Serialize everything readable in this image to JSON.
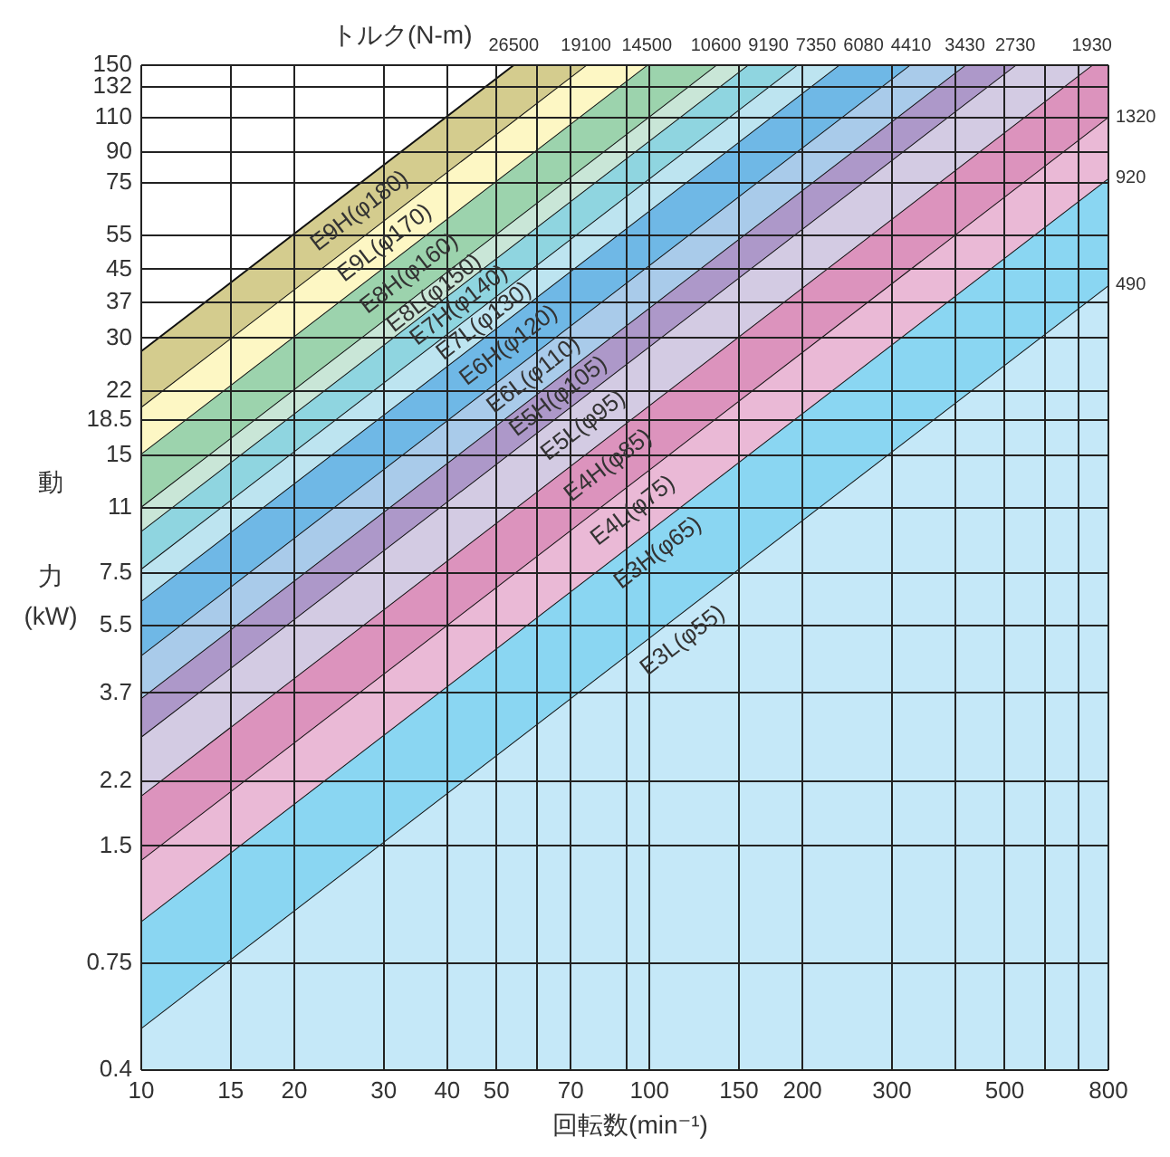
{
  "chart_data": {
    "type": "area",
    "xlabel": "回転数(min⁻¹)",
    "ylabel": "動力(kW)",
    "log": "xy",
    "grid": true,
    "xlim": [
      10,
      800
    ],
    "ylim": [
      0.4,
      150
    ],
    "xticks": [
      10,
      15,
      20,
      30,
      40,
      50,
      {
        "value": 60,
        "label": null
      },
      70,
      {
        "value": 90,
        "label": null
      },
      100,
      150,
      200,
      300,
      {
        "value": 400,
        "label": null
      },
      500,
      {
        "value": 600,
        "label": null
      },
      {
        "value": 700,
        "label": null
      },
      800
    ],
    "yticks": [
      0.4,
      0.75,
      1.5,
      2.2,
      3.7,
      5.5,
      7.5,
      11,
      15,
      18.5,
      22,
      30,
      37,
      45,
      55,
      75,
      90,
      110,
      132,
      150
    ],
    "series": [
      {
        "name": "E9H(φ180)",
        "color": "#d4cc8e",
        "x": [
          10,
          54.06,
          800
        ],
        "values": [
          27.75,
          150,
          150
        ]
      },
      {
        "name": "E9L(φ170)",
        "color": "#fdf7c4",
        "x": [
          10,
          75.0,
          800
        ],
        "values": [
          20.0,
          150,
          150
        ]
      },
      {
        "name": "E8H(φ160)",
        "color": "#9cd3ad",
        "x": [
          10,
          98.8,
          800
        ],
        "values": [
          15.18,
          150,
          150
        ]
      },
      {
        "name": "E8L(φ150)",
        "color": "#c9e6d7",
        "x": [
          10,
          135.1,
          800
        ],
        "values": [
          11.1,
          150,
          150
        ]
      },
      {
        "name": "E7H(φ140)",
        "color": "#8fd5e0",
        "x": [
          10,
          155.9,
          800
        ],
        "values": [
          9.62,
          150,
          150
        ]
      },
      {
        "name": "E7L(φ130)",
        "color": "#bde4f0",
        "x": [
          10,
          194.9,
          800
        ],
        "values": [
          7.7,
          150,
          150
        ]
      },
      {
        "name": "E6H(φ120)",
        "color": "#6fb8e6",
        "x": [
          10,
          235.6,
          800
        ],
        "values": [
          6.37,
          150,
          150
        ]
      },
      {
        "name": "E6L(φ110)",
        "color": "#a9cbea",
        "x": [
          10,
          324.8,
          800
        ],
        "values": [
          4.62,
          150,
          150
        ]
      },
      {
        "name": "E5H(φ105)",
        "color": "#ad98c9",
        "x": [
          10,
          417.6,
          800
        ],
        "values": [
          3.59,
          150,
          150
        ]
      },
      {
        "name": "E5L(φ95)",
        "color": "#d3cbe3",
        "x": [
          10,
          524.7,
          800
        ],
        "values": [
          2.86,
          150,
          150
        ]
      },
      {
        "name": "E4H(φ85)",
        "color": "#dc93bd",
        "x": [
          10,
          742.2,
          800
        ],
        "values": [
          2.02,
          150,
          150
        ]
      },
      {
        "name": "E4L(φ75)",
        "color": "#eab9d6",
        "x": [
          10,
          800
        ],
        "values": [
          1.382,
          110.6
        ]
      },
      {
        "name": "E3H(φ65)",
        "color": "#8ad6f2",
        "x": [
          10,
          800
        ],
        "values": [
          0.963,
          77.1
        ]
      },
      {
        "name": "E3L(φ55)",
        "color": "#c5e8f8",
        "x": [
          10,
          800
        ],
        "values": [
          0.513,
          41.0
        ]
      }
    ],
    "annotations": [
      "トルク(N-m)",
      {
        "text": "26500",
        "x": 54.06,
        "y": 150
      },
      {
        "text": "19100",
        "x": 75.0,
        "y": 150
      },
      {
        "text": "14500",
        "x": 98.8,
        "y": 150
      },
      {
        "text": "10600",
        "x": 135.1,
        "y": 150
      },
      {
        "text": "9190",
        "x": 155.9,
        "y": 150
      },
      {
        "text": "7350",
        "x": 194.9,
        "y": 150
      },
      {
        "text": "6080",
        "x": 235.6,
        "y": 150
      },
      {
        "text": "4410",
        "x": 324.8,
        "y": 150
      },
      {
        "text": "3430",
        "x": 417.6,
        "y": 150
      },
      {
        "text": "2730",
        "x": 524.7,
        "y": 150
      },
      {
        "text": "1930",
        "x": 742.2,
        "y": 150
      },
      {
        "text": "1320",
        "x": 800,
        "y": 110.6
      },
      {
        "text": "920",
        "x": 800,
        "y": 77.1
      },
      {
        "text": "490",
        "x": 800,
        "y": 41.0
      }
    ]
  }
}
